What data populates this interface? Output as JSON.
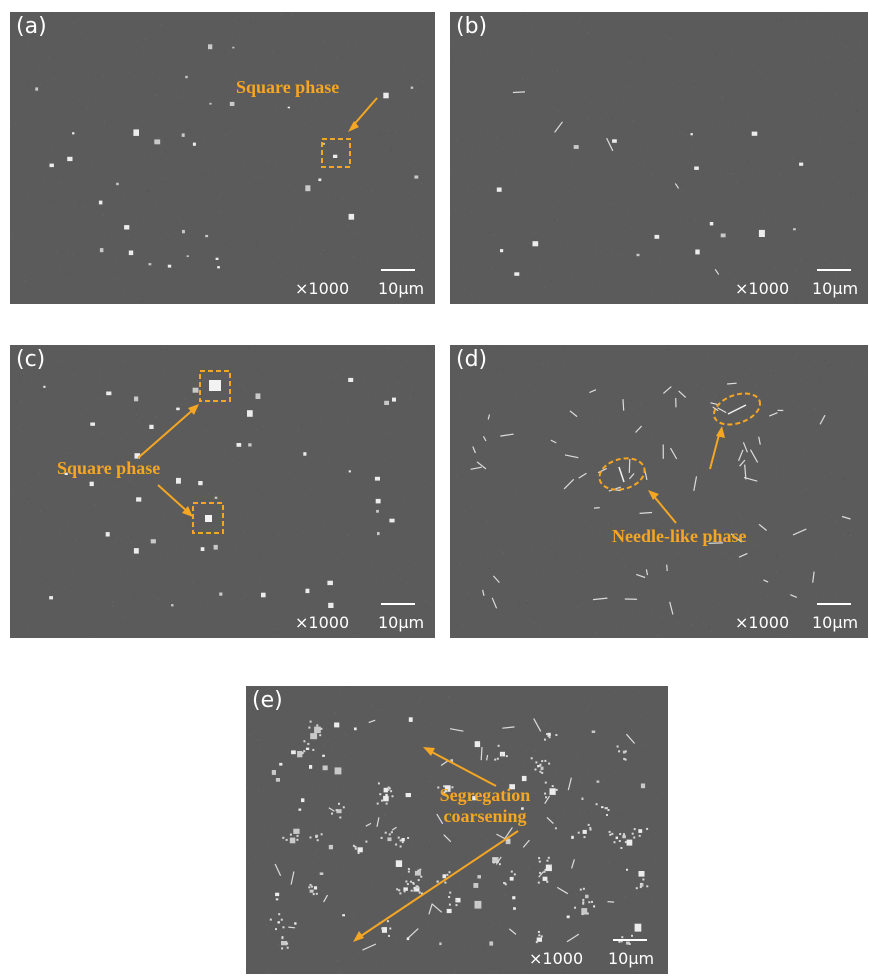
{
  "colors": {
    "annotation": "#f5a623",
    "background": "#5b5b5b",
    "particle": "#e9e9e9"
  },
  "panels": [
    {
      "label": "(a)",
      "magnification": "×1000",
      "scale_bar": "10μm",
      "annotations": [
        "Square phase"
      ]
    },
    {
      "label": "(b)",
      "magnification": "×1000",
      "scale_bar": "10μm",
      "annotations": []
    },
    {
      "label": "(c)",
      "magnification": "×1000",
      "scale_bar": "10μm",
      "annotations": [
        "Square phase"
      ]
    },
    {
      "label": "(d)",
      "magnification": "×1000",
      "scale_bar": "10μm",
      "annotations": [
        "Needle-like phase"
      ]
    },
    {
      "label": "(e)",
      "magnification": "×1000",
      "scale_bar": "10μm",
      "annotations": [
        "Segregation",
        "coarsening"
      ]
    }
  ]
}
